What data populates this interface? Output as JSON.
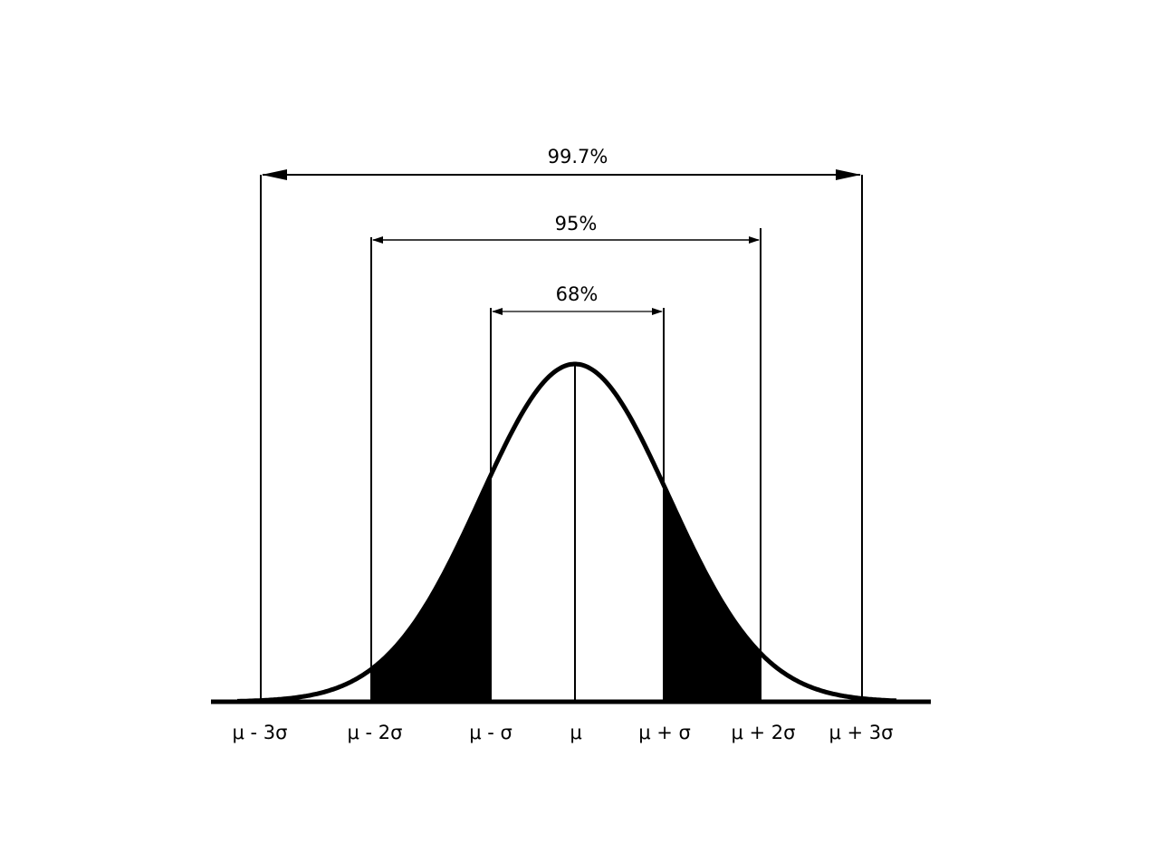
{
  "intervals": [
    {
      "label": "99.7%"
    },
    {
      "label": "95%"
    },
    {
      "label": "68%"
    }
  ],
  "axis_labels": [
    "μ - 3σ",
    "μ - 2σ",
    "μ - σ",
    "μ",
    "μ + σ",
    "μ + 2σ",
    "μ + 3σ"
  ]
}
